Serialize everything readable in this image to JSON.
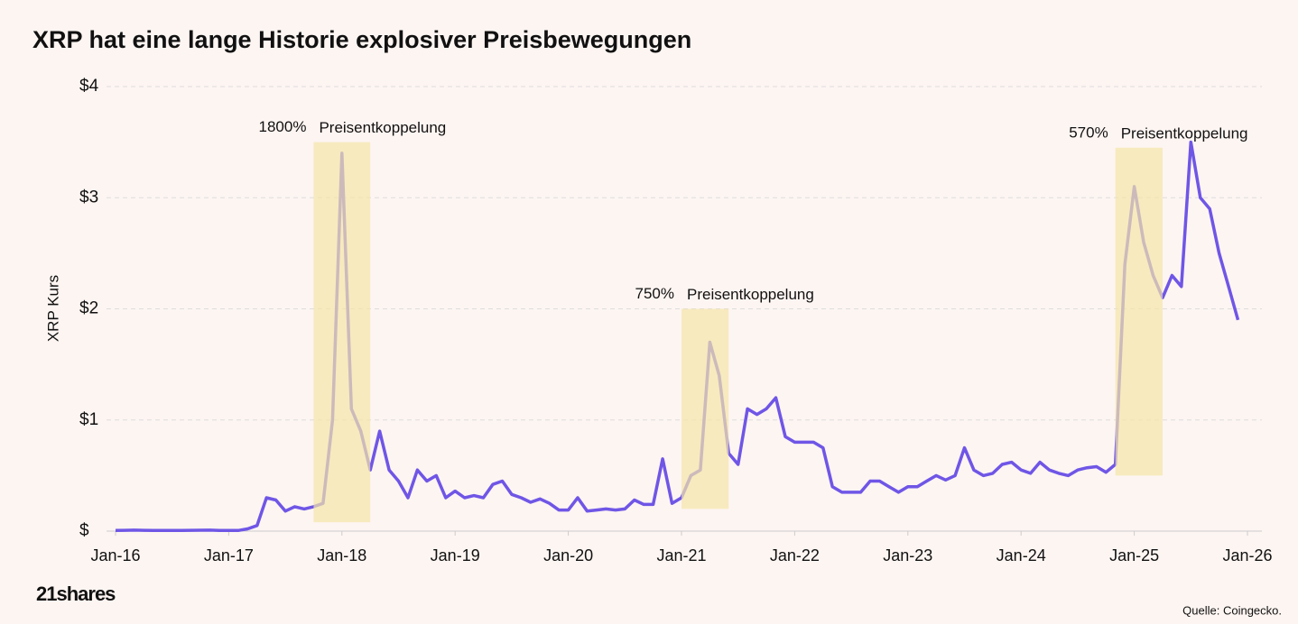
{
  "chart_data": {
    "type": "line",
    "title": "XRP hat eine lange Historie explosiver Preisbewegungen",
    "ylabel": "XRP Kurs",
    "source": "Quelle: Coingecko.",
    "brand": "21shares",
    "x": [
      "2016-01",
      "2016-02",
      "2016-03",
      "2016-04",
      "2016-05",
      "2016-06",
      "2016-07",
      "2016-08",
      "2016-09",
      "2016-10",
      "2016-11",
      "2016-12",
      "2017-01",
      "2017-02",
      "2017-03",
      "2017-04",
      "2017-05",
      "2017-06",
      "2017-07",
      "2017-08",
      "2017-09",
      "2017-10",
      "2017-11",
      "2017-12",
      "2018-01",
      "2018-02",
      "2018-03",
      "2018-04",
      "2018-05",
      "2018-06",
      "2018-07",
      "2018-08",
      "2018-09",
      "2018-10",
      "2018-11",
      "2018-12",
      "2019-01",
      "2019-02",
      "2019-03",
      "2019-04",
      "2019-05",
      "2019-06",
      "2019-07",
      "2019-08",
      "2019-09",
      "2019-10",
      "2019-11",
      "2019-12",
      "2020-01",
      "2020-02",
      "2020-03",
      "2020-04",
      "2020-05",
      "2020-06",
      "2020-07",
      "2020-08",
      "2020-09",
      "2020-10",
      "2020-11",
      "2020-12",
      "2021-01",
      "2021-02",
      "2021-03",
      "2021-04",
      "2021-05",
      "2021-06",
      "2021-07",
      "2021-08",
      "2021-09",
      "2021-10",
      "2021-11",
      "2021-12",
      "2022-01",
      "2022-02",
      "2022-03",
      "2022-04",
      "2022-05",
      "2022-06",
      "2022-07",
      "2022-08",
      "2022-09",
      "2022-10",
      "2022-11",
      "2022-12",
      "2023-01",
      "2023-02",
      "2023-03",
      "2023-04",
      "2023-05",
      "2023-06",
      "2023-07",
      "2023-08",
      "2023-09",
      "2023-10",
      "2023-11",
      "2023-12",
      "2024-01",
      "2024-02",
      "2024-03",
      "2024-04",
      "2024-05",
      "2024-06",
      "2024-07",
      "2024-08",
      "2024-09",
      "2024-10",
      "2024-11",
      "2024-12",
      "2025-01",
      "2025-02",
      "2025-03",
      "2025-04",
      "2025-05",
      "2025-06",
      "2025-07",
      "2025-08",
      "2025-09",
      "2025-10",
      "2025-11",
      "2025-12"
    ],
    "series": [
      {
        "name": "XRP",
        "color": "#6f56e6",
        "values": [
          0.006,
          0.007,
          0.009,
          0.007,
          0.006,
          0.006,
          0.006,
          0.006,
          0.007,
          0.008,
          0.009,
          0.0065,
          0.006,
          0.006,
          0.02,
          0.05,
          0.3,
          0.28,
          0.18,
          0.22,
          0.2,
          0.22,
          0.25,
          1.0,
          3.4,
          1.1,
          0.9,
          0.55,
          0.9,
          0.55,
          0.45,
          0.3,
          0.55,
          0.45,
          0.5,
          0.3,
          0.36,
          0.3,
          0.32,
          0.3,
          0.42,
          0.45,
          0.33,
          0.3,
          0.26,
          0.29,
          0.25,
          0.19,
          0.19,
          0.3,
          0.18,
          0.19,
          0.2,
          0.19,
          0.2,
          0.28,
          0.24,
          0.24,
          0.65,
          0.25,
          0.3,
          0.5,
          0.55,
          1.7,
          1.4,
          0.7,
          0.6,
          1.1,
          1.05,
          1.1,
          1.2,
          0.85,
          0.8,
          0.8,
          0.8,
          0.75,
          0.4,
          0.35,
          0.35,
          0.35,
          0.45,
          0.45,
          0.4,
          0.35,
          0.4,
          0.4,
          0.45,
          0.5,
          0.46,
          0.5,
          0.75,
          0.55,
          0.5,
          0.52,
          0.6,
          0.62,
          0.55,
          0.52,
          0.62,
          0.55,
          0.52,
          0.5,
          0.55,
          0.57,
          0.58,
          0.53,
          0.6,
          2.4,
          3.1,
          2.6,
          2.3,
          2.1,
          2.3,
          2.2,
          3.5,
          3.0,
          2.9,
          2.5,
          2.2,
          1.9
        ]
      }
    ],
    "xlim": [
      "2016-01",
      "2026-01"
    ],
    "xticks": [
      {
        "value": "2016-01",
        "label": "Jan-16"
      },
      {
        "value": "2017-01",
        "label": "Jan-17"
      },
      {
        "value": "2018-01",
        "label": "Jan-18"
      },
      {
        "value": "2019-01",
        "label": "Jan-19"
      },
      {
        "value": "2020-01",
        "label": "Jan-20"
      },
      {
        "value": "2021-01",
        "label": "Jan-21"
      },
      {
        "value": "2022-01",
        "label": "Jan-22"
      },
      {
        "value": "2023-01",
        "label": "Jan-23"
      },
      {
        "value": "2024-01",
        "label": "Jan-24"
      },
      {
        "value": "2025-01",
        "label": "Jan-25"
      },
      {
        "value": "2026-01",
        "label": "Jan-26"
      }
    ],
    "ylim": [
      0,
      4
    ],
    "yticks": [
      {
        "value": 0,
        "label": "$"
      },
      {
        "value": 1,
        "label": "$1"
      },
      {
        "value": 2,
        "label": "$2"
      },
      {
        "value": 3,
        "label": "$3"
      },
      {
        "value": 4,
        "label": "$4"
      }
    ],
    "grid": true,
    "annotations": [
      {
        "x": [
          "2017-10",
          "2018-04"
        ],
        "y": [
          0.08,
          3.5
        ],
        "gain": "1800%",
        "text": "Preisentkoppelung",
        "color": "#f3e6a8"
      },
      {
        "x": [
          "2021-01",
          "2021-06"
        ],
        "y": [
          0.2,
          2.0
        ],
        "gain": "750%",
        "text": "Preisentkoppelung",
        "color": "#f3e6a8"
      },
      {
        "x": [
          "2024-11",
          "2025-04"
        ],
        "y": [
          0.5,
          3.45
        ],
        "gain": "570%",
        "text": "Preisentkoppelung",
        "color": "#f3e6a8"
      }
    ]
  }
}
